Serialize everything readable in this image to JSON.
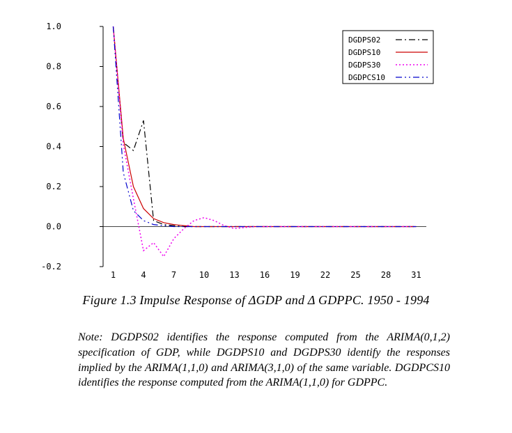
{
  "figure": {
    "caption": "Figure 1.3  Impulse Response of ΔGDP and Δ GDPPC. 1950 - 1994",
    "note": "Note: DGDPS02 identifies the response computed from the ARIMA(0,1,2) specification of GDP, while DGDPS10 and DGDPS30 identify the responses implied by the ARIMA(1,1,0) and ARIMA(3,1,0) of the same variable. DGDPCS10 identifies the response computed from the ARIMA(1,1,0) for GDPPC."
  },
  "chart_data": {
    "type": "line",
    "title": "",
    "xlabel": "",
    "ylabel": "",
    "xlim": [
      0,
      32
    ],
    "ylim": [
      -0.2,
      1.0
    ],
    "grid": false,
    "legend_position": "top-right",
    "xticks": [
      1,
      4,
      7,
      10,
      13,
      16,
      19,
      22,
      25,
      28,
      31
    ],
    "yticks": [
      {
        "v": -0.2,
        "label": "-0.2"
      },
      {
        "v": 0.0,
        "label": "0.0"
      },
      {
        "v": 0.2,
        "label": "0.2"
      },
      {
        "v": 0.4,
        "label": "0.4"
      },
      {
        "v": 0.6,
        "label": "0.6"
      },
      {
        "v": 0.8,
        "label": "0.8"
      },
      {
        "v": 1.0,
        "label": "1.0"
      }
    ],
    "x": [
      1,
      2,
      3,
      4,
      5,
      6,
      7,
      8,
      9,
      10,
      11,
      12,
      13,
      14,
      15,
      16,
      17,
      18,
      19,
      20,
      21,
      22,
      23,
      24,
      25,
      26,
      27,
      28,
      29,
      30,
      31
    ],
    "series": [
      {
        "name": "DGDPS02",
        "color": "#000000",
        "dash": "dash-dot",
        "width": 1.2,
        "values": [
          1.0,
          0.42,
          0.38,
          0.53,
          0.03,
          0.01,
          0.005,
          0,
          0,
          0,
          0,
          0,
          0,
          0,
          0,
          0,
          0,
          0,
          0,
          0,
          0,
          0,
          0,
          0,
          0,
          0,
          0,
          0,
          0,
          0,
          0
        ]
      },
      {
        "name": "DGDPS10",
        "color": "#cc0000",
        "dash": "solid",
        "width": 1.2,
        "values": [
          1.0,
          0.44,
          0.2,
          0.09,
          0.04,
          0.02,
          0.01,
          0.005,
          0,
          0,
          0,
          0,
          0,
          0,
          0,
          0,
          0,
          0,
          0,
          0,
          0,
          0,
          0,
          0,
          0,
          0,
          0,
          0,
          0,
          0,
          0
        ]
      },
      {
        "name": "DGDPS30",
        "color": "#ee00ee",
        "dash": "dotted",
        "width": 1.5,
        "values": [
          1.0,
          0.41,
          0.14,
          -0.12,
          -0.08,
          -0.15,
          -0.06,
          -0.01,
          0.03,
          0.045,
          0.03,
          0.005,
          -0.01,
          -0.005,
          0,
          0,
          0,
          0,
          0,
          0,
          0,
          0,
          0,
          0,
          0,
          0,
          0,
          0,
          0,
          0,
          0
        ]
      },
      {
        "name": "DGDPCS10",
        "color": "#0000cc",
        "dash": "dash-dot-dot",
        "width": 1.2,
        "values": [
          1.0,
          0.27,
          0.08,
          0.03,
          0.01,
          0.005,
          0,
          0,
          0,
          0,
          0,
          0,
          0,
          0,
          0,
          0,
          0,
          0,
          0,
          0,
          0,
          0,
          0,
          0,
          0,
          0,
          0,
          0,
          0,
          0,
          0
        ]
      }
    ]
  },
  "colors": {
    "axis": "#000000",
    "zero_line": "#444444",
    "legend_border": "#000000",
    "background": "#ffffff"
  }
}
